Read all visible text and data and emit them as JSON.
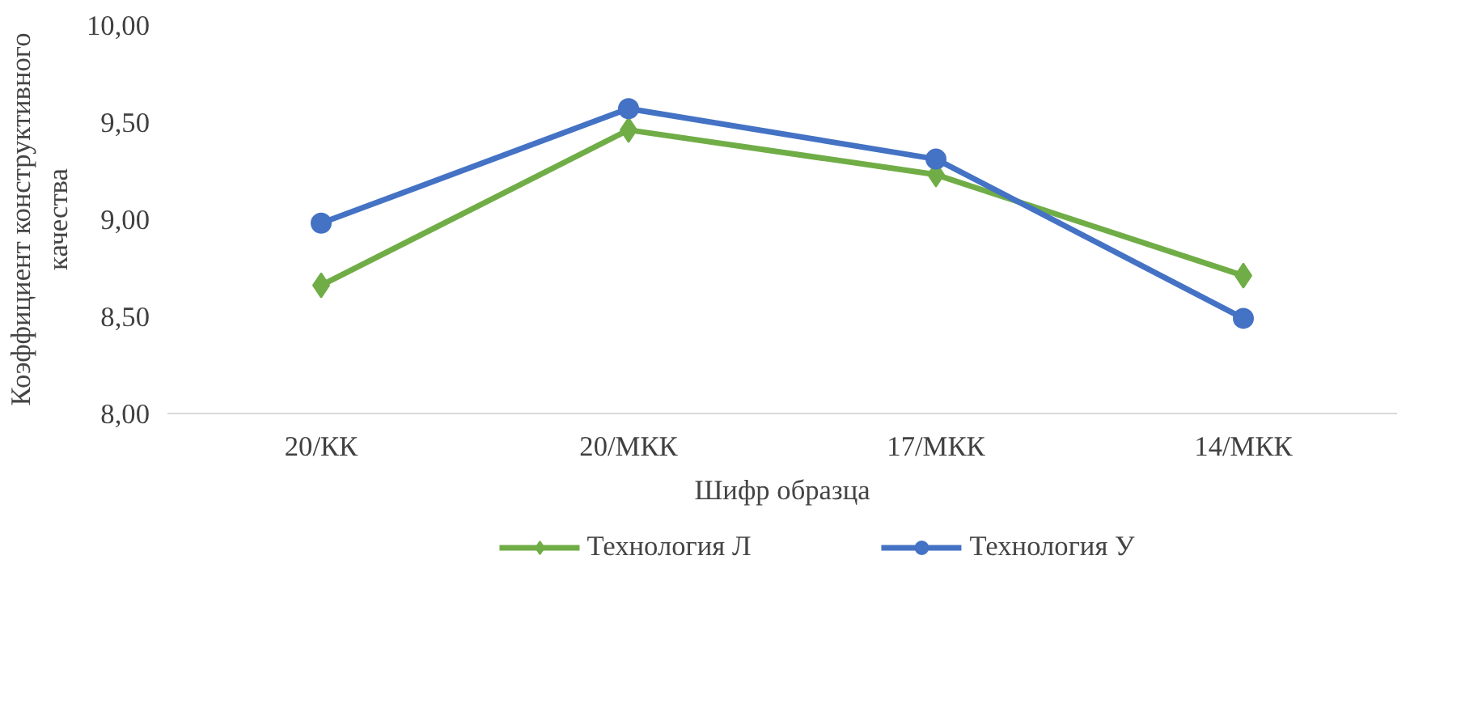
{
  "chart_data": {
    "type": "line",
    "xlabel": "Шифр образца",
    "ylabel": "Коэффициент конструктивного качества",
    "categories": [
      "20/КК",
      "20/МКК",
      "17/МКК",
      "14/МКК"
    ],
    "series": [
      {
        "name": "Технология Л",
        "color": "#70ad47",
        "marker": "diamond",
        "values": [
          8.66,
          9.46,
          9.23,
          8.71
        ]
      },
      {
        "name": "Технология У",
        "color": "#4472c4",
        "marker": "circle",
        "values": [
          8.98,
          9.57,
          9.31,
          8.49
        ]
      }
    ],
    "ylim": [
      8.0,
      10.0
    ],
    "yticks": [
      {
        "value": 8.0,
        "label": "8,00"
      },
      {
        "value": 8.5,
        "label": "8,50"
      },
      {
        "value": 9.0,
        "label": "9,00"
      },
      {
        "value": 9.5,
        "label": "9,50"
      },
      {
        "value": 10.0,
        "label": "10,00"
      }
    ],
    "grid": false,
    "legend": "bottom",
    "line_style": "solid"
  }
}
